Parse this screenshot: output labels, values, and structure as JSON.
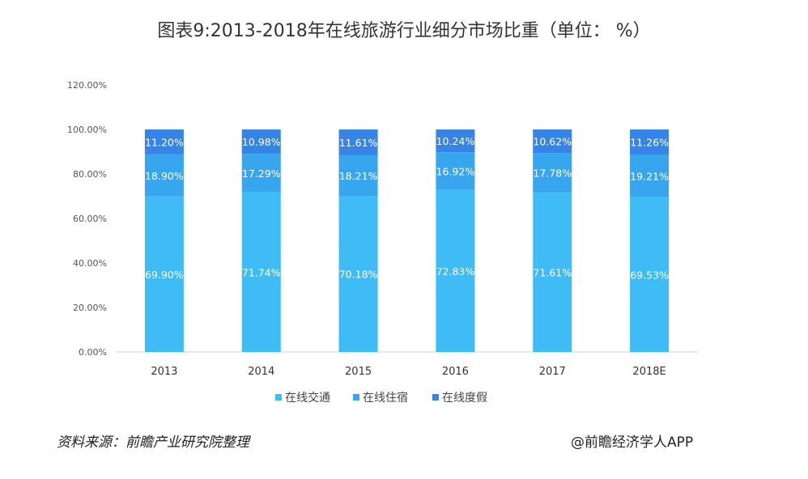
{
  "chart_data": {
    "type": "bar",
    "stacked": true,
    "title": "图表9:2013-2018年在线旅游行业细分市场比重（单位： %）",
    "categories": [
      "2013",
      "2014",
      "2015",
      "2016",
      "2017",
      "2018E"
    ],
    "series": [
      {
        "name": "在线交通",
        "values": [
          69.9,
          71.74,
          70.18,
          72.83,
          71.61,
          69.53
        ],
        "labels": [
          "69.90%",
          "71.74%",
          "70.18%",
          "72.83%",
          "71.61%",
          "69.53%"
        ],
        "color": "#3fbcf5"
      },
      {
        "name": "在线住宿",
        "values": [
          18.9,
          17.29,
          18.21,
          16.92,
          17.78,
          19.21
        ],
        "labels": [
          "18.90%",
          "17.29%",
          "18.21%",
          "16.92%",
          "17.78%",
          "19.21%"
        ],
        "color": "#37a6ef"
      },
      {
        "name": "在线度假",
        "values": [
          11.2,
          10.98,
          11.61,
          10.24,
          10.62,
          11.26
        ],
        "labels": [
          "11.20%",
          "10.98%",
          "11.61%",
          "10.24%",
          "10.62%",
          "11.26%"
        ],
        "color": "#3584e6"
      }
    ],
    "ylim": [
      0,
      120
    ],
    "yticks": [
      "0.00%",
      "20.00%",
      "40.00%",
      "60.00%",
      "80.00%",
      "100.00%",
      "120.00%"
    ],
    "legend_position": "bottom"
  },
  "footer": {
    "source": "资料来源：前瞻产业研究院整理",
    "credit": "@前瞻经济学人APP"
  }
}
